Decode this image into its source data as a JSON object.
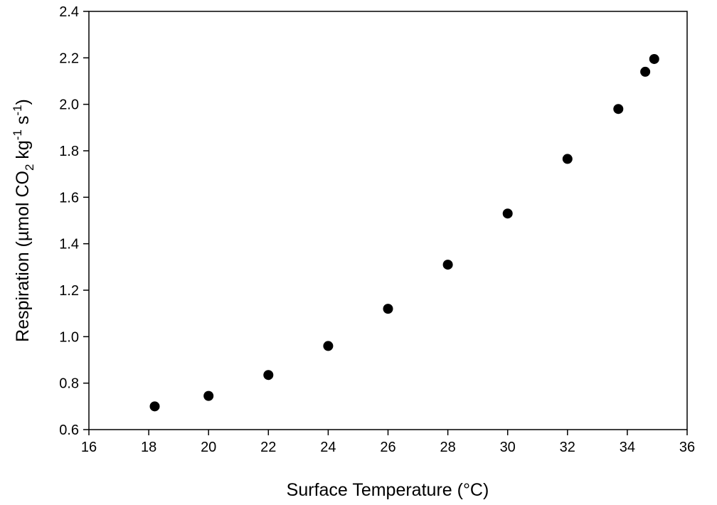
{
  "chart_data": {
    "type": "scatter",
    "title": "",
    "xlabel": "Surface Temperature (°C)",
    "ylabel": {
      "prefix": "Respiration (µmol CO",
      "sub": "2",
      "mid1": " kg",
      "sup1": "-1",
      "mid2": " s",
      "sup2": "-1",
      "suffix": ")"
    },
    "xlim": [
      16,
      36
    ],
    "ylim": [
      0.6,
      2.4
    ],
    "xticks": [
      16,
      18,
      20,
      22,
      24,
      26,
      28,
      30,
      32,
      34,
      36
    ],
    "yticks": [
      0.6,
      0.8,
      1.0,
      1.2,
      1.4,
      1.6,
      1.8,
      2.0,
      2.2,
      2.4
    ],
    "xtick_labels": [
      "16",
      "18",
      "20",
      "22",
      "24",
      "26",
      "28",
      "30",
      "32",
      "34",
      "36"
    ],
    "ytick_labels": [
      "0.6",
      "0.8",
      "1.0",
      "1.2",
      "1.4",
      "1.6",
      "1.8",
      "2.0",
      "2.2",
      "2.4"
    ],
    "grid": false,
    "marker_color": "#000000",
    "series": [
      {
        "x": [
          18.2,
          20.0,
          22.0,
          24.0,
          26.0,
          28.0,
          30.0,
          32.0,
          33.7,
          34.6,
          34.9
        ],
        "y": [
          0.7,
          0.745,
          0.835,
          0.96,
          1.12,
          1.31,
          1.53,
          1.765,
          1.98,
          2.14,
          2.195
        ]
      }
    ]
  }
}
